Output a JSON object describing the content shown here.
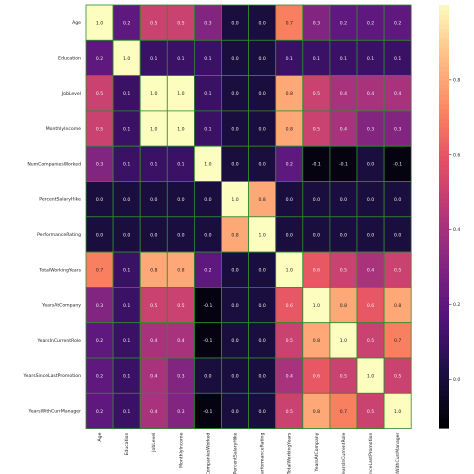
{
  "chart_data": {
    "type": "heatmap",
    "rows": [
      "Age",
      "Education",
      "JobLevel",
      "MonthlyIncome",
      "NumCompaniesWorked",
      "PercentSalaryHike",
      "PerformanceRating",
      "TotalWorkingYears",
      "YearsAtCompany",
      "YearsInCurrentRole",
      "YearsSinceLastPromotion",
      "YearsWithCurrManager"
    ],
    "columns": [
      "Age",
      "Education",
      "JobLevel",
      "MonthlyIncome",
      "NumCompaniesWorked",
      "PercentSalaryHike",
      "PerformanceRating",
      "TotalWorkingYears",
      "YearsAtCompany",
      "YearsInCurrentRole",
      "YearsSinceLastPromotion",
      "YearsWithCurrManager"
    ],
    "values": [
      [
        1.0,
        0.2,
        0.5,
        0.5,
        0.3,
        0.0,
        0.0,
        0.7,
        0.3,
        0.2,
        0.2,
        0.2
      ],
      [
        0.2,
        1.0,
        0.1,
        0.1,
        0.1,
        -0.0,
        -0.0,
        0.1,
        0.1,
        0.1,
        0.1,
        0.1
      ],
      [
        0.5,
        0.1,
        1.0,
        1.0,
        0.1,
        -0.0,
        -0.0,
        0.8,
        0.5,
        0.4,
        0.4,
        0.4
      ],
      [
        0.5,
        0.1,
        1.0,
        1.0,
        0.1,
        -0.0,
        -0.0,
        0.8,
        0.5,
        0.4,
        0.3,
        0.3
      ],
      [
        0.3,
        0.1,
        0.1,
        0.1,
        1.0,
        -0.0,
        -0.0,
        0.2,
        -0.1,
        -0.1,
        -0.0,
        -0.1
      ],
      [
        0.0,
        -0.0,
        -0.0,
        -0.0,
        -0.0,
        1.0,
        0.8,
        -0.0,
        -0.0,
        -0.0,
        -0.0,
        -0.0
      ],
      [
        0.0,
        -0.0,
        -0.0,
        -0.0,
        -0.0,
        0.8,
        1.0,
        -0.0,
        0.0,
        0.0,
        0.0,
        0.0
      ],
      [
        0.7,
        0.1,
        0.8,
        0.8,
        0.2,
        -0.0,
        -0.0,
        1.0,
        0.6,
        0.5,
        0.4,
        0.5
      ],
      [
        0.3,
        0.1,
        0.5,
        0.5,
        -0.1,
        -0.0,
        0.0,
        0.6,
        1.0,
        0.8,
        0.6,
        0.8
      ],
      [
        0.2,
        0.1,
        0.4,
        0.4,
        -0.1,
        -0.0,
        0.0,
        0.5,
        0.8,
        1.0,
        0.5,
        0.7
      ],
      [
        0.2,
        0.1,
        0.4,
        0.3,
        -0.0,
        -0.0,
        0.0,
        0.4,
        0.6,
        0.5,
        1.0,
        0.5
      ],
      [
        0.2,
        0.1,
        0.4,
        0.3,
        -0.1,
        -0.0,
        0.0,
        0.5,
        0.8,
        0.7,
        0.5,
        1.0
      ]
    ],
    "colorbar": {
      "ticks": [
        0.0,
        0.2,
        0.4,
        0.6,
        0.8
      ],
      "labels": [
        "0.0",
        "0.2",
        "0.4",
        "0.6",
        "0.8"
      ]
    },
    "colormap": "magma",
    "cell_border_color": "#2e8b2e",
    "annotations": true
  }
}
